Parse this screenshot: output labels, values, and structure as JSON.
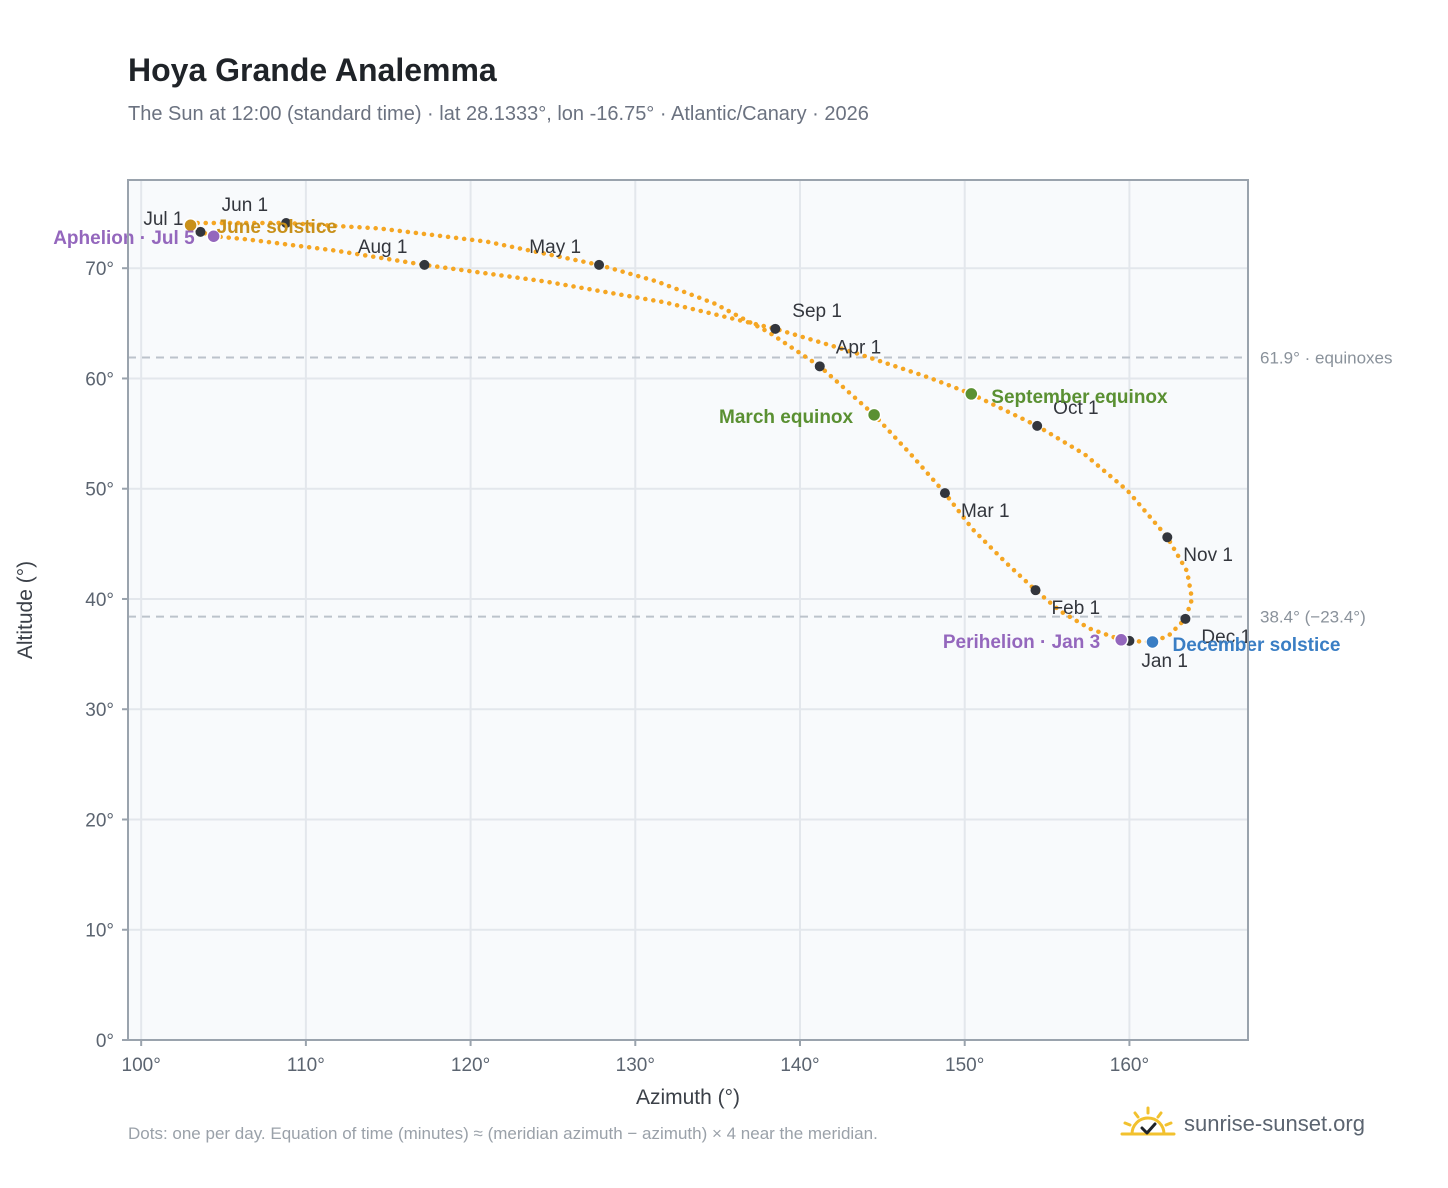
{
  "header": {
    "title": "Hoya Grande Analemma",
    "subtitle": "The Sun at 12:00 (standard time) · lat 28.1333°, lon -16.75° · Atlantic/Canary · 2026"
  },
  "footer": {
    "note": "Dots: one per day. Equation of time (minutes) ≈ (meridian azimuth − azimuth) × 4 near the meridian.",
    "brand": "sunrise-sunset.org"
  },
  "colors": {
    "curve": "#f5a623",
    "month_dot": "#33363d",
    "perihelion_aphelion": "#9467bd",
    "equinox": "#5a9032",
    "june_solstice": "#c8901a",
    "december_solstice": "#3a7ec4",
    "reference_line": "#bcc3cb",
    "grid": "#e3e7ec",
    "plot_bg": "#f8fafc"
  },
  "chart_data": {
    "type": "scatter",
    "xlabel": "Azimuth (°)",
    "ylabel": "Altitude (°)",
    "xlim": [
      99.2,
      167.2
    ],
    "ylim": [
      0,
      78
    ],
    "xticks": [
      100,
      110,
      120,
      130,
      140,
      150,
      160
    ],
    "xtick_labels": [
      "100°",
      "110°",
      "120°",
      "130°",
      "140°",
      "150°",
      "160°"
    ],
    "yticks": [
      0,
      10,
      20,
      30,
      40,
      50,
      60,
      70
    ],
    "ytick_labels": [
      "0°",
      "10°",
      "20°",
      "30°",
      "40°",
      "50°",
      "60°",
      "70°"
    ],
    "grid": true,
    "month_points": [
      {
        "label": "Jan 1",
        "x": 160.0,
        "y": 36.2
      },
      {
        "label": "Feb 1",
        "x": 154.3,
        "y": 40.8
      },
      {
        "label": "Mar 1",
        "x": 148.8,
        "y": 49.6
      },
      {
        "label": "Apr 1",
        "x": 141.2,
        "y": 61.1
      },
      {
        "label": "May 1",
        "x": 127.8,
        "y": 70.3
      },
      {
        "label": "Jun 1",
        "x": 108.8,
        "y": 74.1
      },
      {
        "label": "Jul 1",
        "x": 103.6,
        "y": 73.3
      },
      {
        "label": "Aug 1",
        "x": 117.2,
        "y": 70.3
      },
      {
        "label": "Sep 1",
        "x": 138.5,
        "y": 64.5
      },
      {
        "label": "Oct 1",
        "x": 154.4,
        "y": 55.7
      },
      {
        "label": "Nov 1",
        "x": 162.3,
        "y": 45.6
      },
      {
        "label": "Dec 1",
        "x": 163.4,
        "y": 38.2
      }
    ],
    "events": [
      {
        "label": "Perihelion · Jan 3",
        "x": 159.5,
        "y": 36.3,
        "kind": "perihelion"
      },
      {
        "label": "March equinox",
        "x": 144.5,
        "y": 56.7,
        "kind": "equinox"
      },
      {
        "label": "June solstice",
        "x": 103.0,
        "y": 73.9,
        "kind": "june_solstice"
      },
      {
        "label": "Aphelion · Jul 5",
        "x": 104.4,
        "y": 72.9,
        "kind": "aphelion"
      },
      {
        "label": "September equinox",
        "x": 150.4,
        "y": 58.6,
        "kind": "equinox"
      },
      {
        "label": "December solstice",
        "x": 161.4,
        "y": 36.1,
        "kind": "december_solstice"
      }
    ],
    "reference_lines": [
      {
        "y": 61.9,
        "label": "61.9° · equinoxes"
      },
      {
        "y": 38.4,
        "label": "38.4° (−23.4°)"
      }
    ],
    "curve_path": [
      [
        160.0,
        36.2
      ],
      [
        159.5,
        36.3
      ],
      [
        157.6,
        37.3
      ],
      [
        155.8,
        38.9
      ],
      [
        154.3,
        40.8
      ],
      [
        152.5,
        43.3
      ],
      [
        150.5,
        46.3
      ],
      [
        148.8,
        49.6
      ],
      [
        146.8,
        53.0
      ],
      [
        144.5,
        56.7
      ],
      [
        141.2,
        61.1
      ],
      [
        138.1,
        64.2
      ],
      [
        134.8,
        66.8
      ],
      [
        131.3,
        68.8
      ],
      [
        127.8,
        70.3
      ],
      [
        121.0,
        72.4
      ],
      [
        114.5,
        73.6
      ],
      [
        108.8,
        74.1
      ],
      [
        105.5,
        74.1
      ],
      [
        103.2,
        74.1
      ],
      [
        103.0,
        73.9
      ],
      [
        103.6,
        73.3
      ],
      [
        104.4,
        72.9
      ],
      [
        106.5,
        72.6
      ],
      [
        111.8,
        71.6
      ],
      [
        117.2,
        70.3
      ],
      [
        124.5,
        68.8
      ],
      [
        131.8,
        66.9
      ],
      [
        138.5,
        64.5
      ],
      [
        143.2,
        62.4
      ],
      [
        147.8,
        60.1
      ],
      [
        150.4,
        58.6
      ],
      [
        154.4,
        55.7
      ],
      [
        157.3,
        53.1
      ],
      [
        159.9,
        49.8
      ],
      [
        162.3,
        45.6
      ],
      [
        163.5,
        42.5
      ],
      [
        163.8,
        40.0
      ],
      [
        163.4,
        38.2
      ],
      [
        162.4,
        36.7
      ],
      [
        161.4,
        36.1
      ],
      [
        160.0,
        36.2
      ]
    ]
  }
}
